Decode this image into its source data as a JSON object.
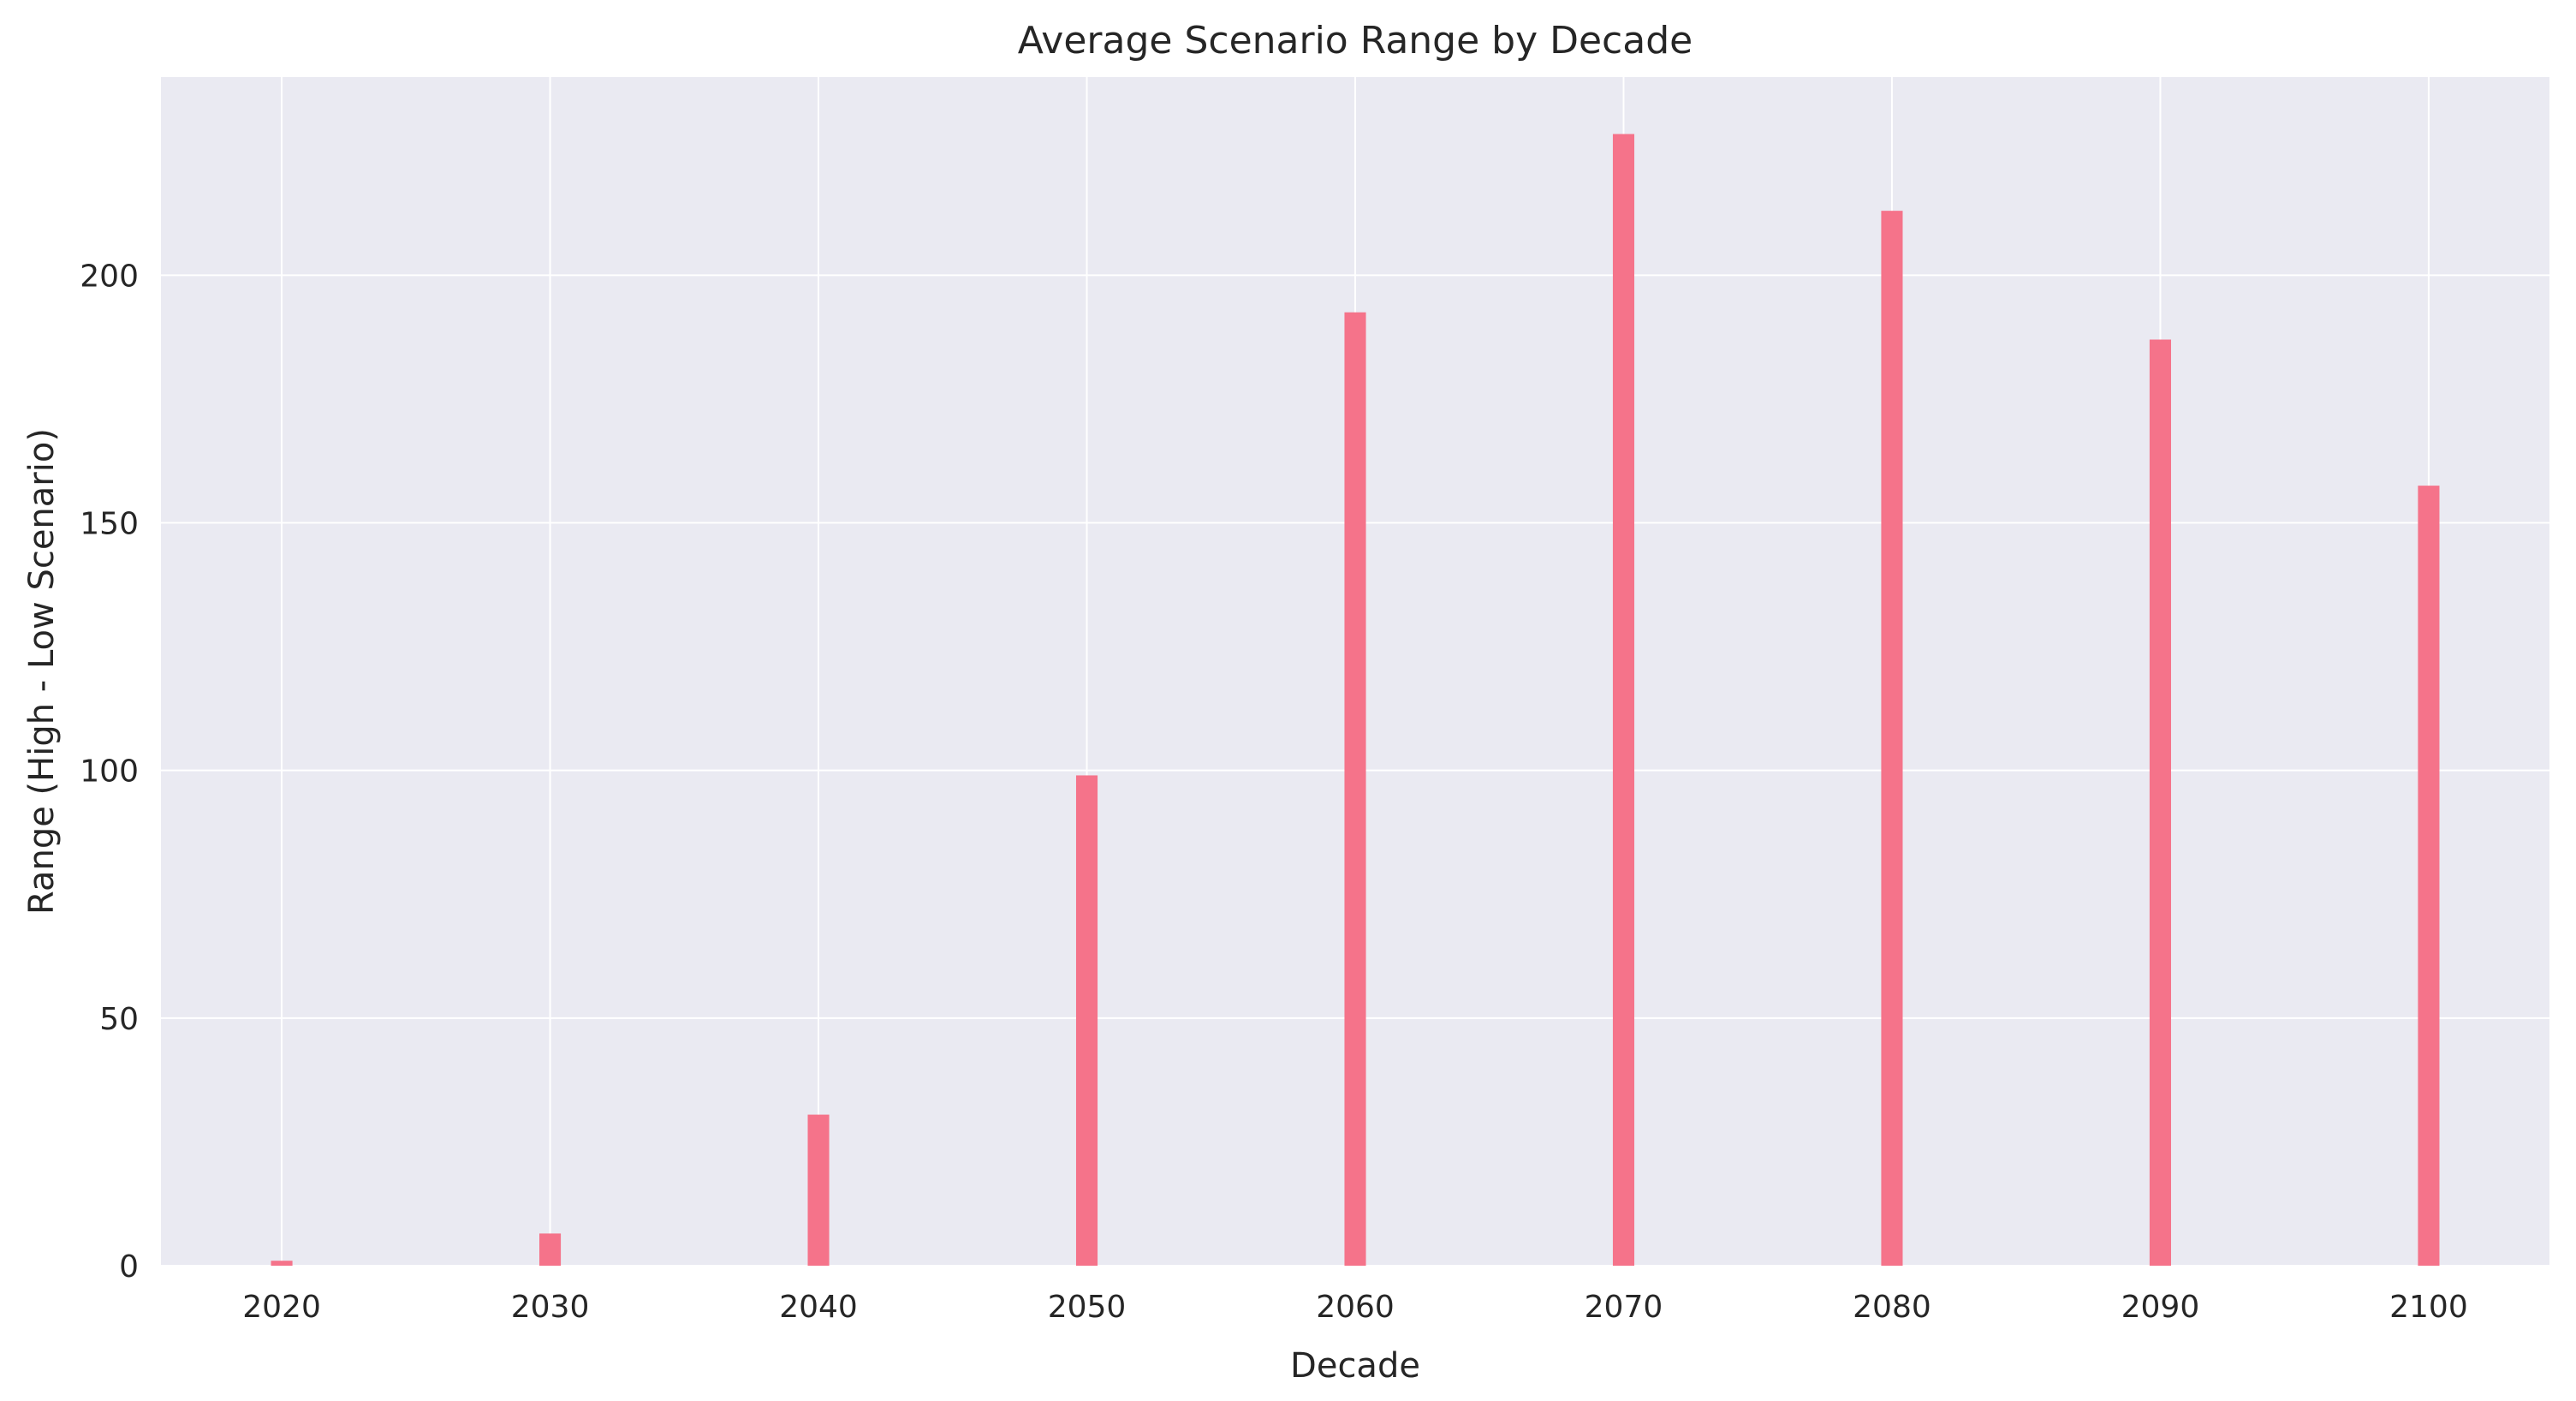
{
  "chart_data": {
    "type": "bar",
    "title": "Average Scenario Range by Decade",
    "xlabel": "Decade",
    "ylabel": "Range (High - Low Scenario)",
    "x": [
      2020,
      2030,
      2040,
      2050,
      2060,
      2070,
      2080,
      2090,
      2100
    ],
    "values": [
      1,
      6.5,
      30.5,
      99,
      192.5,
      228.5,
      213,
      187,
      157.5
    ],
    "xlim": [
      2015.5,
      2104.5
    ],
    "ylim": [
      0,
      240
    ],
    "xticks": [
      "2020",
      "2030",
      "2040",
      "2050",
      "2060",
      "2070",
      "2080",
      "2090",
      "2100"
    ],
    "yticks": [
      "0",
      "50",
      "100",
      "150",
      "200"
    ],
    "grid": true,
    "colors": {
      "bar": "#f5738a",
      "plot_background": "#eaeaf2",
      "grid": "#ffffff",
      "text": "#262626"
    }
  }
}
